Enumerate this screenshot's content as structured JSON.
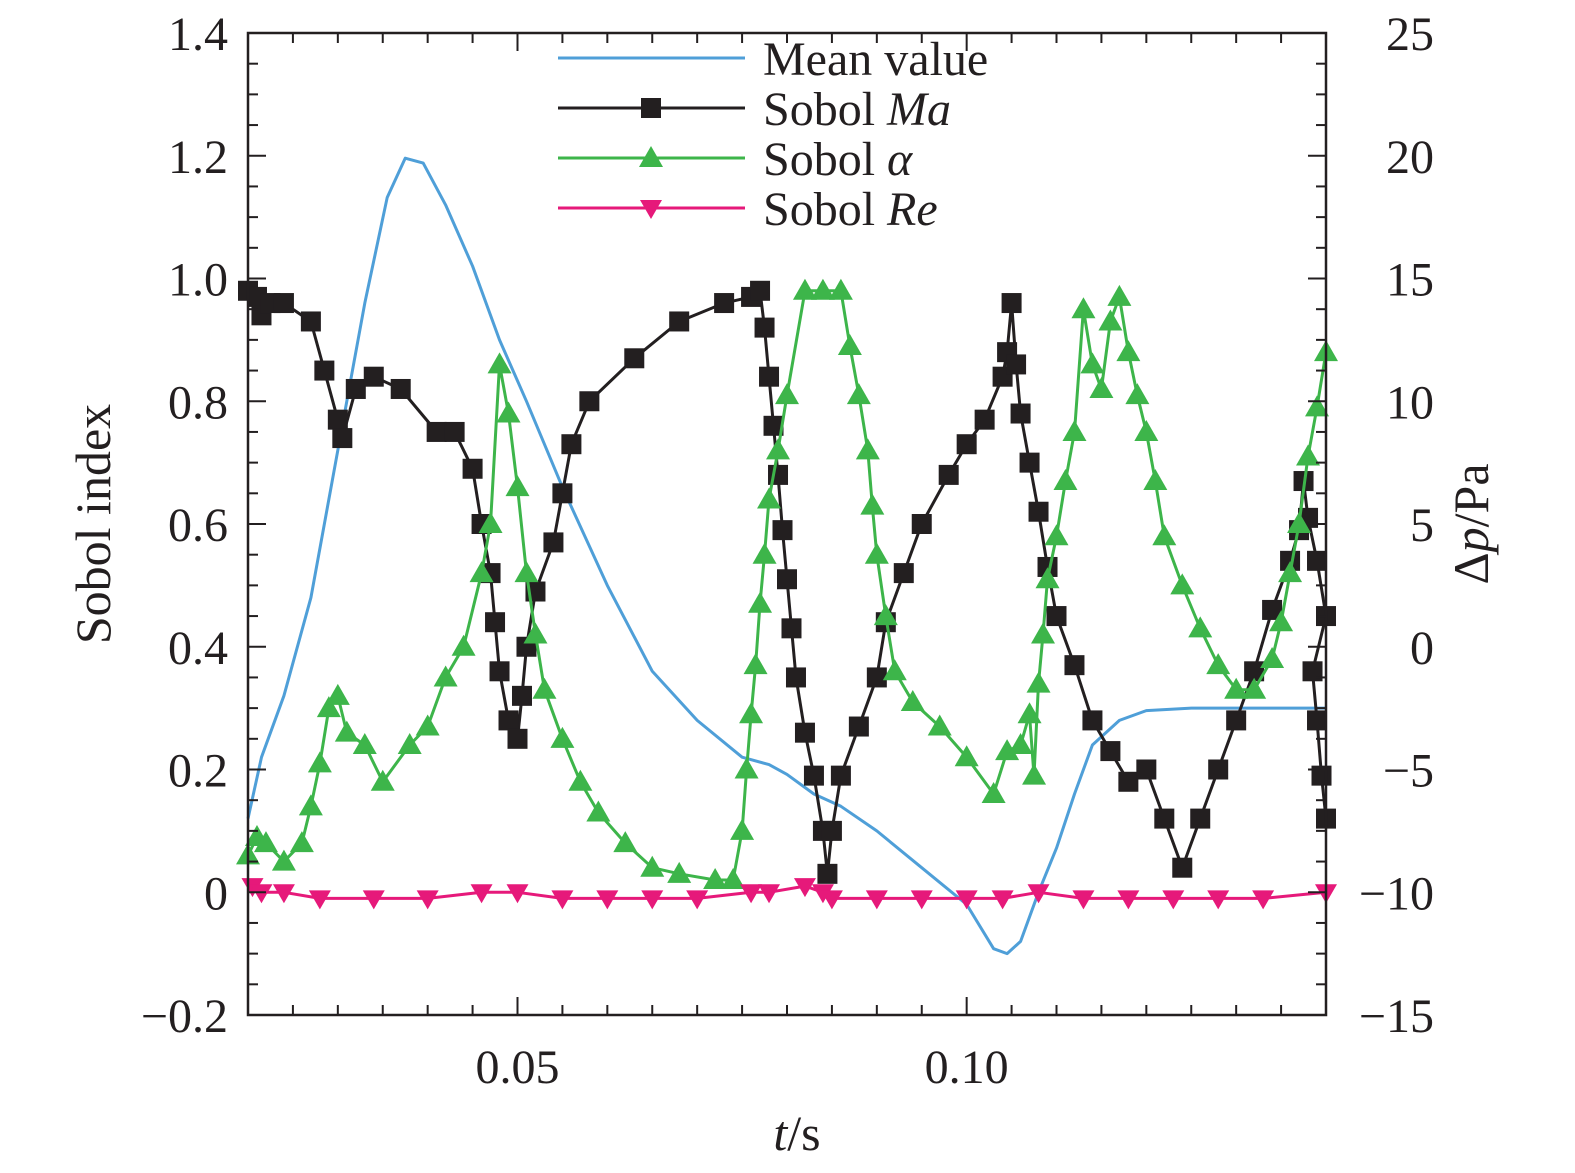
{
  "chart_data": {
    "type": "line",
    "xlabel": {
      "italic": "t",
      "rest": "/s"
    },
    "ylabel": "Sobol index",
    "y2label": {
      "prefix": "Δ",
      "italic": "p",
      "rest": "/Pa"
    },
    "xlim": [
      0.02,
      0.14
    ],
    "ylim": [
      -0.2,
      1.4
    ],
    "y2lim": [
      -15,
      25
    ],
    "x_ticks": [
      {
        "value": 0.05,
        "label": "0.05"
      },
      {
        "value": 0.1,
        "label": "0.10"
      }
    ],
    "y_ticks": [
      {
        "value": -0.2,
        "label": "−0.2"
      },
      {
        "value": 0,
        "label": "0"
      },
      {
        "value": 0.2,
        "label": "0.2"
      },
      {
        "value": 0.4,
        "label": "0.4"
      },
      {
        "value": 0.6,
        "label": "0.6"
      },
      {
        "value": 0.8,
        "label": "0.8"
      },
      {
        "value": 1.0,
        "label": "1.0"
      },
      {
        "value": 1.2,
        "label": "1.2"
      },
      {
        "value": 1.4,
        "label": "1.4"
      }
    ],
    "y2_ticks": [
      {
        "value": -15,
        "label": "−15"
      },
      {
        "value": -10,
        "label": "−10"
      },
      {
        "value": -5,
        "label": "−5"
      },
      {
        "value": 0,
        "label": "0"
      },
      {
        "value": 5,
        "label": "5"
      },
      {
        "value": 10,
        "label": "10"
      },
      {
        "value": 15,
        "label": "15"
      },
      {
        "value": 20,
        "label": "20"
      },
      {
        "value": 25,
        "label": "25"
      }
    ],
    "legend_position": "top-center",
    "grid": false,
    "series": [
      {
        "name": "Mean value",
        "name_parts": {
          "plain": "Mean value",
          "italic": ""
        },
        "axis": "right",
        "color": "#4f9fd8",
        "marker": "none",
        "x": [
          0.02,
          0.0215,
          0.024,
          0.027,
          0.03,
          0.033,
          0.0355,
          0.0375,
          0.0395,
          0.042,
          0.045,
          0.048,
          0.051,
          0.055,
          0.06,
          0.065,
          0.07,
          0.075,
          0.078,
          0.08,
          0.083,
          0.086,
          0.09,
          0.095,
          0.1,
          0.103,
          0.1045,
          0.106,
          0.108,
          0.11,
          0.112,
          0.114,
          0.117,
          0.12,
          0.125,
          0.13,
          0.135,
          0.14
        ],
        "y": [
          -7.0,
          -4.5,
          -2.0,
          2.0,
          8.0,
          14.0,
          18.3,
          19.9,
          19.7,
          18.0,
          15.5,
          12.5,
          10.0,
          6.5,
          2.5,
          -1.0,
          -3.0,
          -4.5,
          -4.8,
          -5.2,
          -6.0,
          -6.5,
          -7.5,
          -9.0,
          -10.5,
          -12.3,
          -12.5,
          -12.0,
          -10.0,
          -8.2,
          -6.0,
          -4.0,
          -3.0,
          -2.6,
          -2.5,
          -2.5,
          -2.5,
          -2.5
        ]
      },
      {
        "name": "Sobol Ma",
        "name_parts": {
          "plain": "Sobol ",
          "italic": "Ma"
        },
        "axis": "left",
        "color": "#231f20",
        "marker": "square",
        "x": [
          0.02,
          0.021,
          0.0215,
          0.0225,
          0.024,
          0.027,
          0.0285,
          0.03,
          0.0305,
          0.032,
          0.034,
          0.037,
          0.041,
          0.043,
          0.045,
          0.046,
          0.047,
          0.0475,
          0.048,
          0.049,
          0.05,
          0.0505,
          0.051,
          0.052,
          0.054,
          0.055,
          0.056,
          0.058,
          0.063,
          0.068,
          0.073,
          0.076,
          0.077,
          0.0775,
          0.078,
          0.0785,
          0.079,
          0.0795,
          0.08,
          0.0805,
          0.081,
          0.082,
          0.083,
          0.084,
          0.0845,
          0.085,
          0.086,
          0.088,
          0.09,
          0.091,
          0.093,
          0.095,
          0.098,
          0.1,
          0.102,
          0.104,
          0.1045,
          0.105,
          0.1055,
          0.106,
          0.107,
          0.108,
          0.109,
          0.11,
          0.112,
          0.114,
          0.116,
          0.118,
          0.12,
          0.122,
          0.124,
          0.126,
          0.128,
          0.13,
          0.132,
          0.134,
          0.136,
          0.137,
          0.1375,
          0.138,
          0.139,
          0.14
        ],
        "y": [
          0.98,
          0.97,
          0.94,
          0.96,
          0.96,
          0.93,
          0.85,
          0.77,
          0.74,
          0.82,
          0.84,
          0.82,
          0.75,
          0.75,
          0.69,
          0.6,
          0.52,
          0.44,
          0.36,
          0.28,
          0.25,
          0.32,
          0.4,
          0.49,
          0.57,
          0.65,
          0.73,
          0.8,
          0.87,
          0.93,
          0.96,
          0.97,
          0.98,
          0.92,
          0.84,
          0.76,
          0.68,
          0.59,
          0.51,
          0.43,
          0.35,
          0.26,
          0.19,
          0.1,
          0.03,
          0.1,
          0.19,
          0.27,
          0.35,
          0.44,
          0.52,
          0.6,
          0.68,
          0.73,
          0.77,
          0.84,
          0.88,
          0.96,
          0.86,
          0.78,
          0.7,
          0.62,
          0.53,
          0.45,
          0.37,
          0.28,
          0.23,
          0.18,
          0.2,
          0.12,
          0.04,
          0.12,
          0.2,
          0.28,
          0.36,
          0.46,
          0.54,
          0.59,
          0.67,
          0.61,
          0.54,
          0.45
        ],
        "x_end": [
          0.1385,
          0.139,
          0.1395,
          0.14
        ],
        "y_end": [
          0.36,
          0.28,
          0.19,
          0.12
        ]
      },
      {
        "name": "Sobol α",
        "name_parts": {
          "plain": "Sobol ",
          "italic": "α"
        },
        "axis": "left",
        "color": "#3db54a",
        "marker": "triangle-up",
        "x": [
          0.02,
          0.021,
          0.022,
          0.024,
          0.026,
          0.027,
          0.028,
          0.029,
          0.03,
          0.031,
          0.033,
          0.035,
          0.038,
          0.04,
          0.042,
          0.044,
          0.046,
          0.047,
          0.048,
          0.049,
          0.05,
          0.051,
          0.052,
          0.053,
          0.055,
          0.057,
          0.059,
          0.062,
          0.065,
          0.068,
          0.072,
          0.074,
          0.075,
          0.0755,
          0.076,
          0.0765,
          0.077,
          0.0775,
          0.078,
          0.079,
          0.08,
          0.082,
          0.084,
          0.086,
          0.087,
          0.088,
          0.089,
          0.0895,
          0.09,
          0.091,
          0.092,
          0.094,
          0.097,
          0.1,
          0.103,
          0.1045,
          0.106,
          0.107,
          0.1075,
          0.108,
          0.1085,
          0.109,
          0.11,
          0.111,
          0.112,
          0.113,
          0.114,
          0.115,
          0.116,
          0.117,
          0.118,
          0.119,
          0.12,
          0.121,
          0.122,
          0.124,
          0.126,
          0.128,
          0.13,
          0.132,
          0.134,
          0.135,
          0.136,
          0.137,
          0.138,
          0.139,
          0.14
        ],
        "y": [
          0.06,
          0.09,
          0.08,
          0.05,
          0.08,
          0.14,
          0.21,
          0.3,
          0.32,
          0.26,
          0.24,
          0.18,
          0.24,
          0.27,
          0.35,
          0.4,
          0.52,
          0.6,
          0.86,
          0.78,
          0.66,
          0.52,
          0.42,
          0.33,
          0.25,
          0.18,
          0.13,
          0.08,
          0.04,
          0.03,
          0.02,
          0.02,
          0.1,
          0.2,
          0.29,
          0.37,
          0.47,
          0.55,
          0.64,
          0.72,
          0.81,
          0.98,
          0.98,
          0.98,
          0.89,
          0.81,
          0.72,
          0.63,
          0.55,
          0.45,
          0.36,
          0.31,
          0.27,
          0.22,
          0.16,
          0.23,
          0.24,
          0.29,
          0.19,
          0.34,
          0.42,
          0.51,
          0.58,
          0.67,
          0.75,
          0.95,
          0.86,
          0.82,
          0.93,
          0.97,
          0.88,
          0.81,
          0.75,
          0.67,
          0.58,
          0.5,
          0.43,
          0.37,
          0.33,
          0.33,
          0.38,
          0.44,
          0.52,
          0.6,
          0.71,
          0.79,
          0.88
        ]
      },
      {
        "name": "Sobol Re",
        "name_parts": {
          "plain": "Sobol ",
          "italic": "Re"
        },
        "axis": "left",
        "color": "#e6197a",
        "marker": "triangle-down",
        "x": [
          0.0205,
          0.0215,
          0.024,
          0.028,
          0.034,
          0.04,
          0.046,
          0.05,
          0.055,
          0.06,
          0.065,
          0.07,
          0.076,
          0.078,
          0.082,
          0.084,
          0.085,
          0.09,
          0.095,
          0.1,
          0.104,
          0.108,
          0.113,
          0.118,
          0.123,
          0.128,
          0.133,
          0.14
        ],
        "y": [
          0.01,
          0.0,
          0.0,
          -0.01,
          -0.01,
          -0.01,
          0.0,
          0.0,
          -0.01,
          -0.01,
          -0.01,
          -0.01,
          0.0,
          0.0,
          0.01,
          0.0,
          -0.01,
          -0.01,
          -0.01,
          -0.01,
          -0.01,
          0.0,
          -0.01,
          -0.01,
          -0.01,
          -0.01,
          -0.01,
          0.0
        ]
      }
    ]
  }
}
